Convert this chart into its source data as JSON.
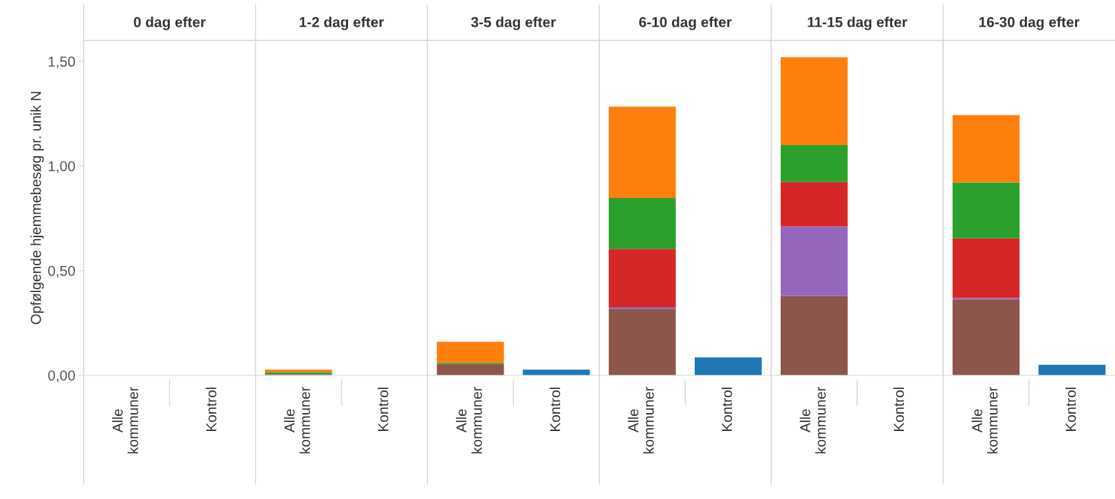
{
  "chart_data": [
    {
      "type": "bar",
      "stacked": true,
      "title": "0 dag efter",
      "ylabel": "Opfølgende hjemmebesøg pr. unik N",
      "categories": [
        "Alle kommuner",
        "Kontrol"
      ],
      "ylim": [
        0,
        1.6
      ],
      "yticks": [
        {
          "value": 0,
          "label": "0,00"
        },
        {
          "value": 0.5,
          "label": "0,50"
        },
        {
          "value": 1,
          "label": "1,00"
        },
        {
          "value": 1.5,
          "label": "1,50"
        }
      ],
      "series": [
        {
          "color": "#8c564b",
          "values": [
            0,
            null
          ]
        },
        {
          "color": "#9467bd",
          "values": [
            0,
            null
          ]
        },
        {
          "color": "#d62728",
          "values": [
            0,
            null
          ]
        },
        {
          "color": "#2ca02c",
          "values": [
            0,
            null
          ]
        },
        {
          "color": "#ff7f0e",
          "values": [
            0,
            null
          ]
        },
        {
          "color": "#1f77b4",
          "values": [
            null,
            0
          ]
        }
      ]
    },
    {
      "type": "bar",
      "stacked": true,
      "title": "1-2 dag efter",
      "categories": [
        "Alle kommuner",
        "Kontrol"
      ],
      "ylim": [
        0,
        1.6
      ],
      "tick_labels": "x",
      "series": [
        {
          "color": "#8c564b",
          "values": [
            0.005,
            null
          ]
        },
        {
          "color": "#9467bd",
          "values": [
            0,
            null
          ]
        },
        {
          "color": "#d62728",
          "values": [
            0,
            null
          ]
        },
        {
          "color": "#2ca02c",
          "values": [
            0.01,
            null
          ]
        },
        {
          "color": "#ff7f0e",
          "values": [
            0.012,
            null
          ]
        },
        {
          "color": "#1f77b4",
          "values": [
            null,
            0
          ]
        }
      ]
    },
    {
      "type": "bar",
      "stacked": true,
      "title": "3-5 dag efter",
      "categories": [
        "Alle kommuner",
        "Kontrol"
      ],
      "ylim": [
        0,
        1.6
      ],
      "tick_labels": "x",
      "series": [
        {
          "color": "#8c564b",
          "values": [
            0.054,
            null
          ]
        },
        {
          "color": "#9467bd",
          "values": [
            0,
            null
          ]
        },
        {
          "color": "#d62728",
          "values": [
            0,
            null
          ]
        },
        {
          "color": "#2ca02c",
          "values": [
            0.006,
            null
          ]
        },
        {
          "color": "#ff7f0e",
          "values": [
            0.1,
            null
          ]
        },
        {
          "color": "#1f77b4",
          "values": [
            null,
            0.027
          ]
        }
      ]
    },
    {
      "type": "bar",
      "stacked": true,
      "title": "6-10 dag efter",
      "categories": [
        "Alle kommuner",
        "Kontrol"
      ],
      "ylim": [
        0,
        1.6
      ],
      "tick_labels": "x",
      "series": [
        {
          "color": "#8c564b",
          "values": [
            0.318,
            null
          ]
        },
        {
          "color": "#9467bd",
          "values": [
            0.007,
            null
          ]
        },
        {
          "color": "#d62728",
          "values": [
            0.278,
            null
          ]
        },
        {
          "color": "#2ca02c",
          "values": [
            0.244,
            null
          ]
        },
        {
          "color": "#ff7f0e",
          "values": [
            0.436,
            null
          ]
        },
        {
          "color": "#1f77b4",
          "values": [
            null,
            0.085
          ]
        }
      ]
    },
    {
      "type": "bar",
      "stacked": true,
      "title": "11-15 dag efter",
      "categories": [
        "Alle kommuner",
        "Kontrol"
      ],
      "ylim": [
        0,
        1.6
      ],
      "tick_labels": "x",
      "series": [
        {
          "color": "#8c564b",
          "values": [
            0.379,
            null
          ]
        },
        {
          "color": "#9467bd",
          "values": [
            0.332,
            null
          ]
        },
        {
          "color": "#d62728",
          "values": [
            0.213,
            null
          ]
        },
        {
          "color": "#2ca02c",
          "values": [
            0.176,
            null
          ]
        },
        {
          "color": "#ff7f0e",
          "values": [
            0.42,
            null
          ]
        },
        {
          "color": "#1f77b4",
          "values": [
            null,
            0
          ]
        }
      ]
    },
    {
      "type": "bar",
      "stacked": true,
      "title": "16-30 dag efter",
      "categories": [
        "Alle kommuner",
        "Kontrol"
      ],
      "ylim": [
        0,
        1.6
      ],
      "tick_labels": "x",
      "series": [
        {
          "color": "#8c564b",
          "values": [
            0.362,
            null
          ]
        },
        {
          "color": "#9467bd",
          "values": [
            0.007,
            null
          ]
        },
        {
          "color": "#d62728",
          "values": [
            0.285,
            null
          ]
        },
        {
          "color": "#2ca02c",
          "values": [
            0.267,
            null
          ]
        },
        {
          "color": "#ff7f0e",
          "values": [
            0.322,
            null
          ]
        },
        {
          "color": "#1f77b4",
          "values": [
            null,
            0.05
          ]
        }
      ]
    }
  ]
}
